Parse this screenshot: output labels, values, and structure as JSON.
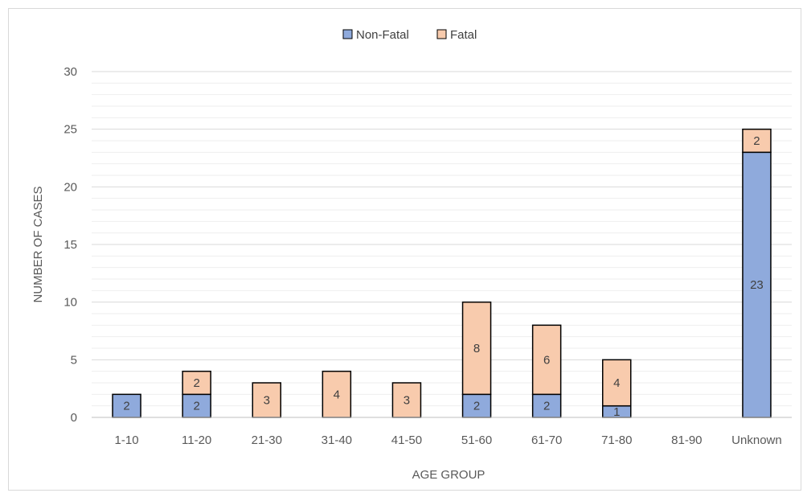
{
  "chart_data": {
    "type": "bar",
    "stacked": true,
    "title": "",
    "xlabel": "AGE GROUP",
    "ylabel": "NUMBER OF CASES",
    "ylim": [
      0,
      30
    ],
    "ytick_major": [
      0,
      5,
      10,
      15,
      20,
      25,
      30
    ],
    "minor_gridline_step": 1,
    "grid": true,
    "legend_position": "top-center",
    "categories": [
      "1-10",
      "11-20",
      "21-30",
      "31-40",
      "41-50",
      "51-60",
      "61-70",
      "71-80",
      "81-90",
      "Unknown"
    ],
    "series": [
      {
        "name": "Non-Fatal",
        "color": "#8faadc",
        "values": [
          2,
          2,
          0,
          0,
          0,
          2,
          2,
          1,
          0,
          23
        ]
      },
      {
        "name": "Fatal",
        "color": "#f8cbad",
        "values": [
          0,
          2,
          3,
          4,
          3,
          8,
          6,
          4,
          0,
          2
        ]
      }
    ]
  }
}
